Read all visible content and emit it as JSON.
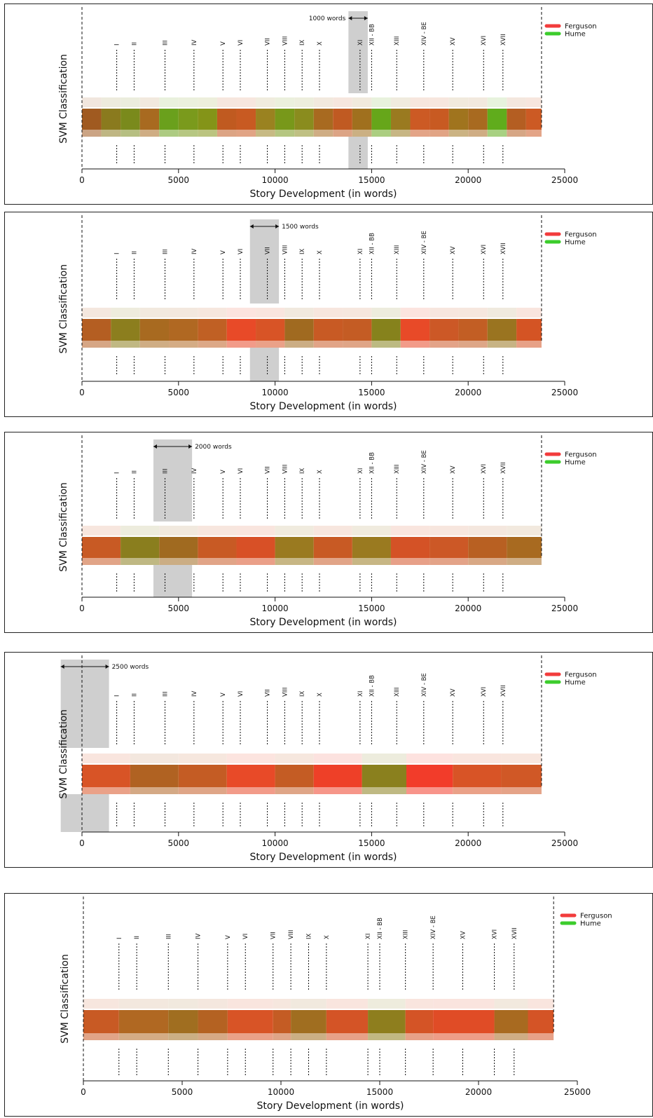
{
  "chart_data": [
    {
      "type": "heatmap",
      "xlabel": "Story Development (in words)",
      "ylabel": "SVM Classification",
      "xlim": [
        0,
        25000
      ],
      "xticks": [
        0,
        5000,
        10000,
        15000,
        20000,
        25000
      ],
      "text_length": 23800,
      "window_label": "1000 words",
      "window": [
        13800,
        14800
      ],
      "chapters": [
        {
          "label": "I",
          "x": 1800
        },
        {
          "label": "II",
          "x": 2700
        },
        {
          "label": "III",
          "x": 4300
        },
        {
          "label": "IV",
          "x": 5800
        },
        {
          "label": "V",
          "x": 7300
        },
        {
          "label": "VI",
          "x": 8200
        },
        {
          "label": "VII",
          "x": 9600
        },
        {
          "label": "VIII",
          "x": 10500
        },
        {
          "label": "IX",
          "x": 11400
        },
        {
          "label": "X",
          "x": 12300
        },
        {
          "label": "XI",
          "x": 14400
        },
        {
          "label": "XII - BB",
          "x": 15000
        },
        {
          "label": "XIII",
          "x": 16300
        },
        {
          "label": "XIV - BE",
          "x": 17700
        },
        {
          "label": "XV",
          "x": 19200
        },
        {
          "label": "XVI",
          "x": 20800
        },
        {
          "label": "XVII",
          "x": 21800
        }
      ],
      "segments": [
        {
          "x0": 0,
          "x1": 1000,
          "color": "#a05a20"
        },
        {
          "x0": 1000,
          "x1": 2000,
          "color": "#8a7a1e"
        },
        {
          "x0": 2000,
          "x1": 3000,
          "color": "#7a8a1c"
        },
        {
          "x0": 3000,
          "x1": 4000,
          "color": "#a86a20"
        },
        {
          "x0": 4000,
          "x1": 5000,
          "color": "#6aa01c"
        },
        {
          "x0": 5000,
          "x1": 6000,
          "color": "#7a9a1c"
        },
        {
          "x0": 6000,
          "x1": 7000,
          "color": "#849418"
        },
        {
          "x0": 7000,
          "x1": 8000,
          "color": "#c05a20"
        },
        {
          "x0": 8000,
          "x1": 9000,
          "color": "#c85a22"
        },
        {
          "x0": 9000,
          "x1": 10000,
          "color": "#9a8220"
        },
        {
          "x0": 10000,
          "x1": 11000,
          "color": "#78981a"
        },
        {
          "x0": 11000,
          "x1": 12000,
          "color": "#8a8c1e"
        },
        {
          "x0": 12000,
          "x1": 13000,
          "color": "#a86a20"
        },
        {
          "x0": 13000,
          "x1": 14000,
          "color": "#c05a22"
        },
        {
          "x0": 14000,
          "x1": 15000,
          "color": "#a0701e"
        },
        {
          "x0": 15000,
          "x1": 16000,
          "color": "#66a61a"
        },
        {
          "x0": 16000,
          "x1": 17000,
          "color": "#9a7a20"
        },
        {
          "x0": 17000,
          "x1": 18000,
          "color": "#cc5a24"
        },
        {
          "x0": 18000,
          "x1": 19000,
          "color": "#c85a22"
        },
        {
          "x0": 19000,
          "x1": 20000,
          "color": "#a0741e"
        },
        {
          "x0": 20000,
          "x1": 21000,
          "color": "#a86a20"
        },
        {
          "x0": 21000,
          "x1": 22000,
          "color": "#60ac1c"
        },
        {
          "x0": 22000,
          "x1": 23000,
          "color": "#b45e22"
        },
        {
          "x0": 23000,
          "x1": 23800,
          "color": "#cc5a24"
        }
      ]
    },
    {
      "type": "heatmap",
      "xlabel": "Story Development (in words)",
      "ylabel": "SVM Classification",
      "xlim": [
        0,
        25000
      ],
      "xticks": [
        0,
        5000,
        10000,
        15000,
        20000,
        25000
      ],
      "text_length": 23800,
      "window_label": "1500 words",
      "window": [
        8700,
        10200
      ],
      "chapters": [
        {
          "label": "I",
          "x": 1800
        },
        {
          "label": "II",
          "x": 2700
        },
        {
          "label": "III",
          "x": 4300
        },
        {
          "label": "IV",
          "x": 5800
        },
        {
          "label": "V",
          "x": 7300
        },
        {
          "label": "VI",
          "x": 8200
        },
        {
          "label": "VII",
          "x": 9600
        },
        {
          "label": "VIII",
          "x": 10500
        },
        {
          "label": "IX",
          "x": 11400
        },
        {
          "label": "X",
          "x": 12300
        },
        {
          "label": "XI",
          "x": 14400
        },
        {
          "label": "XII - BB",
          "x": 15000
        },
        {
          "label": "XIII",
          "x": 16300
        },
        {
          "label": "XIV - BE",
          "x": 17700
        },
        {
          "label": "XV",
          "x": 19200
        },
        {
          "label": "XVI",
          "x": 20800
        },
        {
          "label": "XVII",
          "x": 21800
        }
      ],
      "segments": [
        {
          "x0": 0,
          "x1": 1500,
          "color": "#b45e22"
        },
        {
          "x0": 1500,
          "x1": 3000,
          "color": "#8c7e1e"
        },
        {
          "x0": 3000,
          "x1": 4500,
          "color": "#a86a20"
        },
        {
          "x0": 4500,
          "x1": 6000,
          "color": "#b06822"
        },
        {
          "x0": 6000,
          "x1": 7500,
          "color": "#c06024"
        },
        {
          "x0": 7500,
          "x1": 9000,
          "color": "#e84a28"
        },
        {
          "x0": 9000,
          "x1": 10500,
          "color": "#d85426"
        },
        {
          "x0": 10500,
          "x1": 12000,
          "color": "#a06a20"
        },
        {
          "x0": 12000,
          "x1": 13500,
          "color": "#c85a24"
        },
        {
          "x0": 13500,
          "x1": 15000,
          "color": "#c45c24"
        },
        {
          "x0": 15000,
          "x1": 16500,
          "color": "#86821c"
        },
        {
          "x0": 16500,
          "x1": 18000,
          "color": "#e84a28"
        },
        {
          "x0": 18000,
          "x1": 19500,
          "color": "#cc5826"
        },
        {
          "x0": 19500,
          "x1": 21000,
          "color": "#c25e24"
        },
        {
          "x0": 21000,
          "x1": 22500,
          "color": "#9a7420"
        },
        {
          "x0": 22500,
          "x1": 23800,
          "color": "#d45424"
        }
      ]
    },
    {
      "type": "heatmap",
      "xlabel": "Story Development (in words)",
      "ylabel": "SVM Classification",
      "xlim": [
        0,
        25000
      ],
      "xticks": [
        0,
        5000,
        10000,
        15000,
        20000,
        25000
      ],
      "text_length": 23800,
      "window_label": "2000 words",
      "window": [
        3700,
        5700
      ],
      "chapters": [
        {
          "label": "I",
          "x": 1800
        },
        {
          "label": "II",
          "x": 2700
        },
        {
          "label": "III",
          "x": 4300
        },
        {
          "label": "IV",
          "x": 5800
        },
        {
          "label": "V",
          "x": 7300
        },
        {
          "label": "VI",
          "x": 8200
        },
        {
          "label": "VII",
          "x": 9600
        },
        {
          "label": "VIII",
          "x": 10500
        },
        {
          "label": "IX",
          "x": 11400
        },
        {
          "label": "X",
          "x": 12300
        },
        {
          "label": "XI",
          "x": 14400
        },
        {
          "label": "XII - BB",
          "x": 15000
        },
        {
          "label": "XIII",
          "x": 16300
        },
        {
          "label": "XIV - BE",
          "x": 17700
        },
        {
          "label": "XV",
          "x": 19200
        },
        {
          "label": "XVI",
          "x": 20800
        },
        {
          "label": "XVII",
          "x": 21800
        }
      ],
      "segments": [
        {
          "x0": 0,
          "x1": 2000,
          "color": "#c85a24"
        },
        {
          "x0": 2000,
          "x1": 4000,
          "color": "#8a7e1e"
        },
        {
          "x0": 4000,
          "x1": 6000,
          "color": "#a06a20"
        },
        {
          "x0": 6000,
          "x1": 8000,
          "color": "#c85a24"
        },
        {
          "x0": 8000,
          "x1": 10000,
          "color": "#d85026"
        },
        {
          "x0": 10000,
          "x1": 12000,
          "color": "#9a7a20"
        },
        {
          "x0": 12000,
          "x1": 14000,
          "color": "#c85a24"
        },
        {
          "x0": 14000,
          "x1": 16000,
          "color": "#9a7a20"
        },
        {
          "x0": 16000,
          "x1": 18000,
          "color": "#d45226"
        },
        {
          "x0": 18000,
          "x1": 20000,
          "color": "#cc5826"
        },
        {
          "x0": 20000,
          "x1": 22000,
          "color": "#b86022"
        },
        {
          "x0": 22000,
          "x1": 23800,
          "color": "#a86a20"
        }
      ]
    },
    {
      "type": "heatmap",
      "xlabel": "Story Development (in words)",
      "ylabel": "SVM Classification",
      "xlim": [
        0,
        25000
      ],
      "xticks": [
        0,
        5000,
        10000,
        15000,
        20000,
        25000
      ],
      "text_length": 23800,
      "window_label": "2500 words",
      "window": [
        -1100,
        1400
      ],
      "chapters": [
        {
          "label": "I",
          "x": 1800
        },
        {
          "label": "II",
          "x": 2700
        },
        {
          "label": "III",
          "x": 4300
        },
        {
          "label": "IV",
          "x": 5800
        },
        {
          "label": "V",
          "x": 7300
        },
        {
          "label": "VI",
          "x": 8200
        },
        {
          "label": "VII",
          "x": 9600
        },
        {
          "label": "VIII",
          "x": 10500
        },
        {
          "label": "IX",
          "x": 11400
        },
        {
          "label": "X",
          "x": 12300
        },
        {
          "label": "XI",
          "x": 14400
        },
        {
          "label": "XII - BB",
          "x": 15000
        },
        {
          "label": "XIII",
          "x": 16300
        },
        {
          "label": "XIV - BE",
          "x": 17700
        },
        {
          "label": "XV",
          "x": 19200
        },
        {
          "label": "XVI",
          "x": 20800
        },
        {
          "label": "XVII",
          "x": 21800
        }
      ],
      "segments": [
        {
          "x0": 0,
          "x1": 2500,
          "color": "#d85426"
        },
        {
          "x0": 2500,
          "x1": 5000,
          "color": "#b06222"
        },
        {
          "x0": 5000,
          "x1": 7500,
          "color": "#c45c24"
        },
        {
          "x0": 7500,
          "x1": 10000,
          "color": "#e84a28"
        },
        {
          "x0": 10000,
          "x1": 12000,
          "color": "#c45c24"
        },
        {
          "x0": 12000,
          "x1": 14500,
          "color": "#ee4028"
        },
        {
          "x0": 14500,
          "x1": 16800,
          "color": "#8a801e"
        },
        {
          "x0": 16800,
          "x1": 19200,
          "color": "#f23c2a"
        },
        {
          "x0": 19200,
          "x1": 21700,
          "color": "#d85426"
        },
        {
          "x0": 21700,
          "x1": 23800,
          "color": "#d05826"
        }
      ]
    },
    {
      "type": "heatmap",
      "xlabel": "Story Development (in words)",
      "ylabel": "SVM Classification",
      "xlim": [
        0,
        25000
      ],
      "xticks": [
        0,
        5000,
        10000,
        15000,
        20000,
        25000
      ],
      "text_length": 23800,
      "window_label": "",
      "window": null,
      "chapters": [
        {
          "label": "I",
          "x": 1800
        },
        {
          "label": "II",
          "x": 2700
        },
        {
          "label": "III",
          "x": 4300
        },
        {
          "label": "IV",
          "x": 5800
        },
        {
          "label": "V",
          "x": 7300
        },
        {
          "label": "VI",
          "x": 8200
        },
        {
          "label": "VII",
          "x": 9600
        },
        {
          "label": "VIII",
          "x": 10500
        },
        {
          "label": "IX",
          "x": 11400
        },
        {
          "label": "X",
          "x": 12300
        },
        {
          "label": "XI",
          "x": 14400
        },
        {
          "label": "XII - BB",
          "x": 15000
        },
        {
          "label": "XIII",
          "x": 16300
        },
        {
          "label": "XIV - BE",
          "x": 17700
        },
        {
          "label": "XV",
          "x": 19200
        },
        {
          "label": "XVI",
          "x": 20800
        },
        {
          "label": "XVII",
          "x": 21800
        }
      ],
      "segments": [
        {
          "x0": 0,
          "x1": 1800,
          "color": "#c85a24"
        },
        {
          "x0": 1800,
          "x1": 4300,
          "color": "#b06822"
        },
        {
          "x0": 4300,
          "x1": 5800,
          "color": "#a06e20"
        },
        {
          "x0": 5800,
          "x1": 7300,
          "color": "#b46222"
        },
        {
          "x0": 7300,
          "x1": 9600,
          "color": "#d85426"
        },
        {
          "x0": 9600,
          "x1": 10500,
          "color": "#c45c24"
        },
        {
          "x0": 10500,
          "x1": 12300,
          "color": "#a06e20"
        },
        {
          "x0": 12300,
          "x1": 14400,
          "color": "#d45426"
        },
        {
          "x0": 14400,
          "x1": 16300,
          "color": "#8e7e1e"
        },
        {
          "x0": 16300,
          "x1": 17700,
          "color": "#d45426"
        },
        {
          "x0": 17700,
          "x1": 20800,
          "color": "#e04c26"
        },
        {
          "x0": 20800,
          "x1": 22500,
          "color": "#a86a20"
        },
        {
          "x0": 22500,
          "x1": 23800,
          "color": "#d45426"
        }
      ]
    }
  ],
  "legend": [
    {
      "label": "Ferguson",
      "color": "#f23c3c"
    },
    {
      "label": "Hume",
      "color": "#3ccc2c"
    }
  ]
}
